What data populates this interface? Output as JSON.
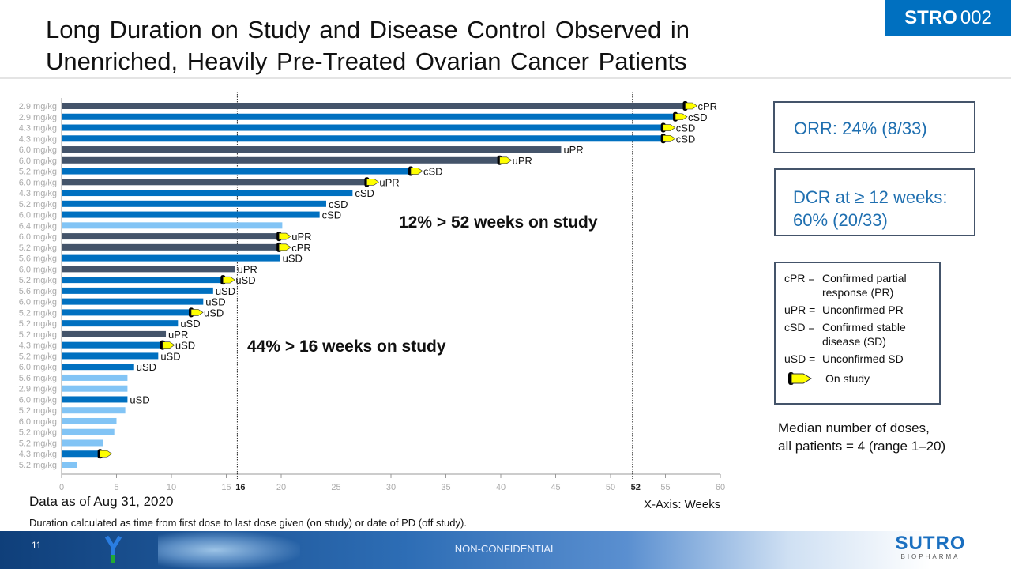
{
  "header": {
    "title_line1": "Long Duration on Study and Disease Control Observed in",
    "title_line2": "Unenriched, Heavily Pre-Treated Ovarian Cancer Patients",
    "badge_bold": "STRO",
    "badge_light": "002"
  },
  "colors": {
    "pr": "#44546a",
    "sd": "#0070c0",
    "none": "#82c4f5",
    "arrow": "#ffff00",
    "badge": "#0070c0"
  },
  "chart_data": {
    "type": "bar",
    "orientation": "horizontal",
    "xlabel": "X-Axis: Weeks",
    "xlim": [
      0,
      60
    ],
    "xticks": [
      0,
      5,
      10,
      15,
      20,
      25,
      30,
      35,
      40,
      45,
      50,
      55,
      60
    ],
    "reference_lines": [
      {
        "x": 16,
        "label": "16"
      },
      {
        "x": 52,
        "label": "52"
      }
    ],
    "annotations": [
      "12% > 52 weeks on study",
      "44% > 16 weeks on study"
    ],
    "rows": [
      {
        "dose": "2.9 mg/kg",
        "weeks": 56.8,
        "response": "cPR",
        "on_study": true,
        "group": "pr"
      },
      {
        "dose": "2.9 mg/kg",
        "weeks": 55.9,
        "response": "cSD",
        "on_study": true,
        "group": "sd"
      },
      {
        "dose": "4.3 mg/kg",
        "weeks": 54.8,
        "response": "cSD",
        "on_study": true,
        "group": "sd"
      },
      {
        "dose": "4.3 mg/kg",
        "weeks": 54.8,
        "response": "cSD",
        "on_study": true,
        "group": "sd"
      },
      {
        "dose": "6.0 mg/kg",
        "weeks": 45.5,
        "response": "uPR",
        "on_study": false,
        "group": "pr"
      },
      {
        "dose": "6.0 mg/kg",
        "weeks": 39.9,
        "response": "uPR",
        "on_study": true,
        "group": "pr"
      },
      {
        "dose": "5.2 mg/kg",
        "weeks": 31.8,
        "response": "cSD",
        "on_study": true,
        "group": "sd"
      },
      {
        "dose": "6.0 mg/kg",
        "weeks": 27.8,
        "response": "uPR",
        "on_study": true,
        "group": "pr"
      },
      {
        "dose": "4.3 mg/kg",
        "weeks": 26.5,
        "response": "cSD",
        "on_study": false,
        "group": "sd"
      },
      {
        "dose": "5.2 mg/kg",
        "weeks": 24.1,
        "response": "cSD",
        "on_study": false,
        "group": "sd"
      },
      {
        "dose": "6.0 mg/kg",
        "weeks": 23.5,
        "response": "cSD",
        "on_study": false,
        "group": "sd"
      },
      {
        "dose": "6.4 mg/kg",
        "weeks": 20.1,
        "response": "",
        "on_study": false,
        "group": "none"
      },
      {
        "dose": "6.0 mg/kg",
        "weeks": 19.8,
        "response": "uPR",
        "on_study": true,
        "group": "pr"
      },
      {
        "dose": "5.2 mg/kg",
        "weeks": 19.8,
        "response": "cPR",
        "on_study": true,
        "group": "pr"
      },
      {
        "dose": "5.6 mg/kg",
        "weeks": 19.9,
        "response": "uSD",
        "on_study": false,
        "group": "sd"
      },
      {
        "dose": "6.0 mg/kg",
        "weeks": 15.8,
        "response": "uPR",
        "on_study": false,
        "group": "pr"
      },
      {
        "dose": "5.2 mg/kg",
        "weeks": 14.7,
        "response": "uSD",
        "on_study": true,
        "group": "sd"
      },
      {
        "dose": "5.6 mg/kg",
        "weeks": 13.8,
        "response": "uSD",
        "on_study": false,
        "group": "sd"
      },
      {
        "dose": "6.0 mg/kg",
        "weeks": 12.9,
        "response": "uSD",
        "on_study": false,
        "group": "sd"
      },
      {
        "dose": "5.2 mg/kg",
        "weeks": 11.8,
        "response": "uSD",
        "on_study": true,
        "group": "sd"
      },
      {
        "dose": "5.2 mg/kg",
        "weeks": 10.6,
        "response": "uSD",
        "on_study": false,
        "group": "sd"
      },
      {
        "dose": "5.2 mg/kg",
        "weeks": 9.5,
        "response": "uPR",
        "on_study": false,
        "group": "pr"
      },
      {
        "dose": "4.3 mg/kg",
        "weeks": 9.2,
        "response": "uSD",
        "on_study": true,
        "group": "sd"
      },
      {
        "dose": "5.2 mg/kg",
        "weeks": 8.8,
        "response": "uSD",
        "on_study": false,
        "group": "sd"
      },
      {
        "dose": "6.0 mg/kg",
        "weeks": 6.6,
        "response": "uSD",
        "on_study": false,
        "group": "sd"
      },
      {
        "dose": "5.6 mg/kg",
        "weeks": 6.0,
        "response": "",
        "on_study": false,
        "group": "none"
      },
      {
        "dose": "2.9 mg/kg",
        "weeks": 6.0,
        "response": "",
        "on_study": false,
        "group": "none"
      },
      {
        "dose": "6.0 mg/kg",
        "weeks": 6.0,
        "response": "uSD",
        "on_study": false,
        "group": "sd"
      },
      {
        "dose": "5.2 mg/kg",
        "weeks": 5.8,
        "response": "",
        "on_study": false,
        "group": "none"
      },
      {
        "dose": "6.0 mg/kg",
        "weeks": 5.0,
        "response": "",
        "on_study": false,
        "group": "none"
      },
      {
        "dose": "5.2 mg/kg",
        "weeks": 4.8,
        "response": "",
        "on_study": false,
        "group": "none"
      },
      {
        "dose": "5.2 mg/kg",
        "weeks": 3.8,
        "response": "",
        "on_study": false,
        "group": "none"
      },
      {
        "dose": "4.3 mg/kg",
        "weeks": 3.5,
        "response": "",
        "on_study": true,
        "group": "sd"
      },
      {
        "dose": "5.2 mg/kg",
        "weeks": 1.4,
        "response": "",
        "on_study": false,
        "group": "none"
      }
    ]
  },
  "stats": {
    "orr": "ORR: 24% (8/33)",
    "dcr_line1": "DCR at ≥ 12 weeks:",
    "dcr_line2": "60% (20/33)"
  },
  "legend": {
    "items": [
      {
        "key": "cPR =",
        "value": "Confirmed partial response (PR)"
      },
      {
        "key": "uPR =",
        "value": "Unconfirmed PR"
      },
      {
        "key": "cSD =",
        "value": "Confirmed  stable disease (SD)"
      },
      {
        "key": "uSD =",
        "value": "Unconfirmed SD"
      }
    ],
    "on_study": "On study"
  },
  "median": {
    "line1": "Median number of doses,",
    "line2": "all patients = 4 (range 1–20)"
  },
  "footnotes": {
    "as_of": "Data as of Aug 31, 2020",
    "x_axis": "X-Axis: Weeks",
    "note": "Duration calculated as time from first dose to last dose given (on study) or date of PD (off study)."
  },
  "footer": {
    "page": "11",
    "confidentiality": "NON-CONFIDENTIAL",
    "logo_main": "SUTRO",
    "logo_sub": "BIOPHARMA"
  }
}
